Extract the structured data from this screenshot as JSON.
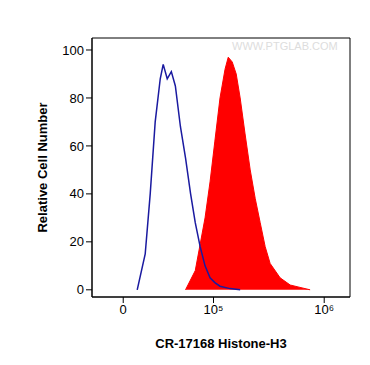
{
  "chart_data": {
    "type": "area",
    "xlabel": "CR-17168 Histone-H3",
    "ylabel": "Relative Cell Number",
    "annotations": [
      "WWW.PTGLAB.COM"
    ],
    "log": "x",
    "grid": false,
    "xlim": [
      -22000,
      1700000
    ],
    "xticks": [
      0,
      {
        "value": 100000,
        "label": "10⁵"
      },
      {
        "value": 1000000,
        "label": "10⁶"
      }
    ],
    "ylim": [
      -3,
      105
    ],
    "yticks": [
      0,
      20,
      40,
      60,
      80,
      100
    ],
    "series": [
      {
        "type": "line",
        "color": "#1a1aa0",
        "x": [
          9340,
          14980,
          18700,
          22600,
          26800,
          29400,
          33100,
          37100,
          41300,
          47000,
          53200,
          60000,
          66800,
          74600,
          83200,
          92800,
          103000,
          115000,
          142000,
          176000
        ],
        "values": [
          0,
          15,
          40,
          70,
          88,
          94,
          88,
          91,
          85,
          68,
          55,
          40,
          28,
          18,
          10,
          5,
          3,
          1.5,
          0.5,
          0
        ]
      },
      {
        "type": "area",
        "color": "#ff0000",
        "x": [
          53200,
          66800,
          83200,
          92800,
          103000,
          115000,
          128000,
          137000,
          149000,
          162000,
          176000,
          195000,
          217000,
          241000,
          267000,
          296000,
          328000,
          403000,
          496000,
          608000,
          748000
        ],
        "values": [
          0,
          8,
          30,
          45,
          62,
          80,
          92,
          97,
          95,
          90,
          80,
          65,
          50,
          38,
          28,
          18,
          11,
          5,
          2,
          1,
          0
        ]
      }
    ]
  }
}
